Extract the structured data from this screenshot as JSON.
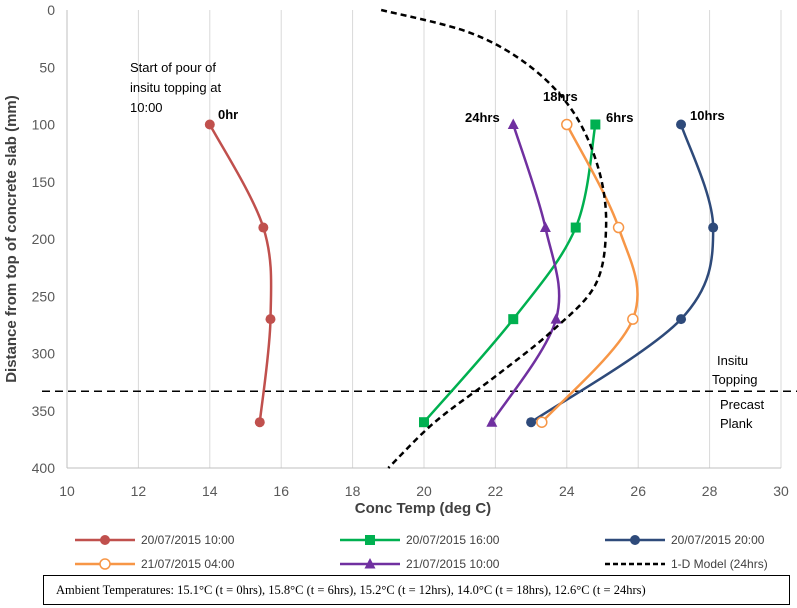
{
  "chart_data": {
    "type": "line",
    "xlabel": "Conc Temp (deg C)",
    "ylabel": "Distance from top of concrete slab (mm)",
    "xlim": [
      10,
      30
    ],
    "ylim": [
      0,
      400
    ],
    "y_inverted": true,
    "xticks": [
      10,
      12,
      14,
      16,
      18,
      20,
      22,
      24,
      26,
      28,
      30
    ],
    "yticks": [
      0,
      50,
      100,
      150,
      200,
      250,
      300,
      350,
      400
    ],
    "xtick_labels": [
      "10",
      "12",
      "14",
      "16",
      "18",
      "20",
      "22",
      "24",
      "26",
      "28",
      "30"
    ],
    "ytick_labels": [
      "0",
      "50",
      "100",
      "150",
      "200",
      "250",
      "300",
      "350",
      "400"
    ],
    "grid": "vertical",
    "legend_position": "bottom",
    "series": [
      {
        "name": "20/07/2015 10:00",
        "color": "#c0504d",
        "marker": "circle",
        "x": [
          14.0,
          15.5,
          15.7,
          15.4
        ],
        "y": [
          100,
          190,
          270,
          360
        ],
        "label": "0hr"
      },
      {
        "name": "20/07/2015 16:00",
        "color": "#00b050",
        "marker": "square",
        "x": [
          24.8,
          24.25,
          22.5,
          20.0
        ],
        "y": [
          100,
          190,
          270,
          360
        ],
        "label": "6hrs"
      },
      {
        "name": "20/07/2015 20:00",
        "color": "#2e4a7a",
        "marker": "circle",
        "x": [
          27.2,
          28.1,
          27.2,
          23.0
        ],
        "y": [
          100,
          190,
          270,
          360
        ],
        "label": "10hrs"
      },
      {
        "name": "21/07/2015 04:00",
        "color": "#f79646",
        "marker": "open-circle",
        "x": [
          24.0,
          25.45,
          25.85,
          23.3
        ],
        "y": [
          100,
          190,
          270,
          360
        ],
        "label": "18hrs"
      },
      {
        "name": "21/07/2015 10:00",
        "color": "#7030a0",
        "marker": "triangle",
        "x": [
          22.5,
          23.4,
          23.7,
          21.9
        ],
        "y": [
          100,
          190,
          270,
          360
        ],
        "label": "24hrs"
      },
      {
        "name": "1-D Model (24hrs)",
        "color": "#000000",
        "marker": "none",
        "dashed": true,
        "x": [
          18.8,
          21.3,
          23.0,
          24.2,
          24.9,
          25.1,
          24.8,
          23.6,
          22.0,
          20.3,
          19.0
        ],
        "y": [
          0,
          20,
          50,
          90,
          140,
          190,
          240,
          280,
          320,
          360,
          400
        ]
      }
    ],
    "divider": {
      "y": 333,
      "label_above": [
        "Insitu",
        "Topping"
      ],
      "label_below": [
        "Precast",
        "Plank"
      ]
    },
    "annotation": [
      "Start of pour of",
      "insitu topping at",
      "10:00"
    ],
    "ambient_text": "Ambient Temperatures: 15.1°C (t = 0hrs), 15.8°C (t = 6hrs), 15.2°C (t = 12hrs), 14.0°C (t = 18hrs), 12.6°C (t = 24hrs)"
  }
}
